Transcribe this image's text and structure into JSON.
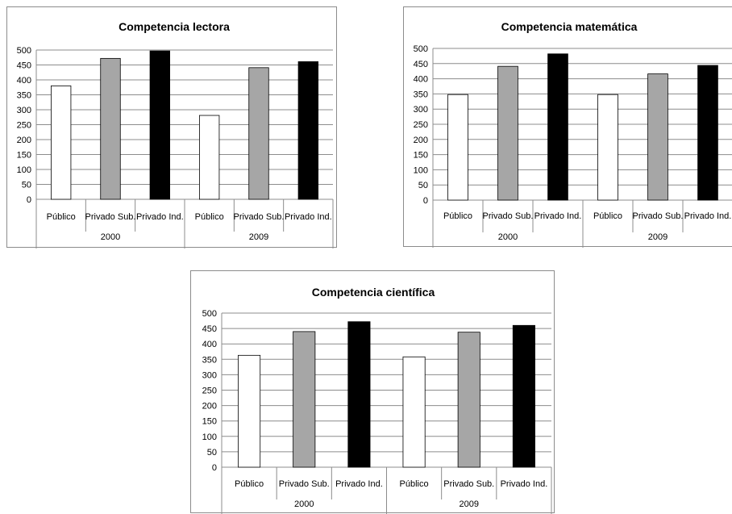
{
  "chart_data": [
    {
      "type": "bar",
      "title": "Competencia lectora",
      "groups": [
        "2000",
        "2009"
      ],
      "categories": [
        "Público",
        "Privado Sub.",
        "Privado Ind."
      ],
      "series": [
        {
          "group": "2000",
          "values": [
            380,
            472,
            497
          ]
        },
        {
          "group": "2009",
          "values": [
            281,
            441,
            461
          ]
        }
      ],
      "yticks": [
        0,
        50,
        100,
        150,
        200,
        250,
        300,
        350,
        400,
        450,
        500
      ],
      "ylim": [
        0,
        500
      ],
      "grid": true,
      "legend": "none",
      "bar_colors": [
        "#ffffff",
        "#a6a6a6",
        "#000000"
      ]
    },
    {
      "type": "bar",
      "title": "Competencia matemática",
      "groups": [
        "2000",
        "2009"
      ],
      "categories": [
        "Público",
        "Privado Sub.",
        "Privado Ind."
      ],
      "series": [
        {
          "group": "2000",
          "values": [
            348,
            441,
            482
          ]
        },
        {
          "group": "2009",
          "values": [
            348,
            416,
            444
          ]
        }
      ],
      "yticks": [
        0,
        50,
        100,
        150,
        200,
        250,
        300,
        350,
        400,
        450,
        500
      ],
      "ylim": [
        0,
        500
      ],
      "grid": true,
      "legend": "none",
      "bar_colors": [
        "#ffffff",
        "#a6a6a6",
        "#000000"
      ]
    },
    {
      "type": "bar",
      "title": "Competencia científica",
      "groups": [
        "2000",
        "2009"
      ],
      "categories": [
        "Público",
        "Privado Sub.",
        "Privado Ind."
      ],
      "series": [
        {
          "group": "2000",
          "values": [
            363,
            440,
            472
          ]
        },
        {
          "group": "2009",
          "values": [
            358,
            438,
            460
          ]
        }
      ],
      "yticks": [
        0,
        50,
        100,
        150,
        200,
        250,
        300,
        350,
        400,
        450,
        500
      ],
      "ylim": [
        0,
        500
      ],
      "grid": true,
      "legend": "none",
      "bar_colors": [
        "#ffffff",
        "#a6a6a6",
        "#000000"
      ]
    }
  ]
}
